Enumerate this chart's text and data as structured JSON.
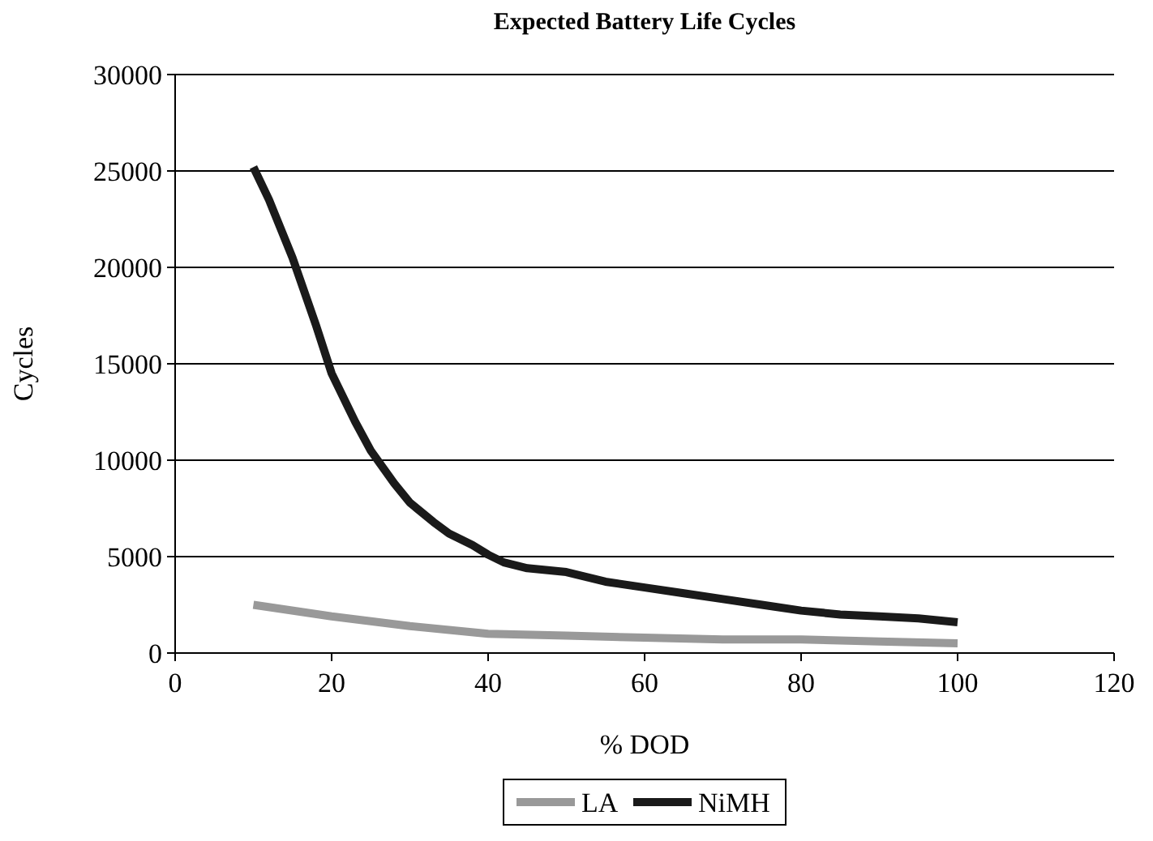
{
  "chart_data": {
    "type": "line",
    "title": "Expected Battery Life Cycles",
    "xlabel": "% DOD",
    "ylabel": "Cycles",
    "xlim": [
      0,
      120
    ],
    "xticks": [
      0,
      20,
      40,
      60,
      80,
      100,
      120
    ],
    "ylim": [
      0,
      30000
    ],
    "yticks": [
      0,
      5000,
      10000,
      15000,
      20000,
      25000,
      30000
    ],
    "grid": "y",
    "legend": "bottom",
    "marker": "none",
    "line_style": "solid",
    "series": [
      {
        "name": "LA",
        "color": "#999999",
        "x": [
          10,
          20,
          30,
          40,
          50,
          60,
          70,
          80,
          90,
          100
        ],
        "values": [
          2500,
          1900,
          1400,
          1000,
          900,
          800,
          700,
          700,
          600,
          500
        ]
      },
      {
        "name": "NiMH",
        "color": "#1a1a1a",
        "x": [
          10,
          12,
          15,
          18,
          20,
          23,
          25,
          28,
          30,
          33,
          35,
          38,
          40,
          42,
          45,
          50,
          55,
          60,
          65,
          70,
          75,
          80,
          85,
          90,
          95,
          100
        ],
        "values": [
          25200,
          23500,
          20500,
          17000,
          14500,
          12000,
          10500,
          8800,
          7800,
          6800,
          6200,
          5600,
          5100,
          4700,
          4400,
          4200,
          3700,
          3400,
          3100,
          2800,
          2500,
          2200,
          2000,
          1900,
          1800,
          1600
        ]
      }
    ]
  }
}
